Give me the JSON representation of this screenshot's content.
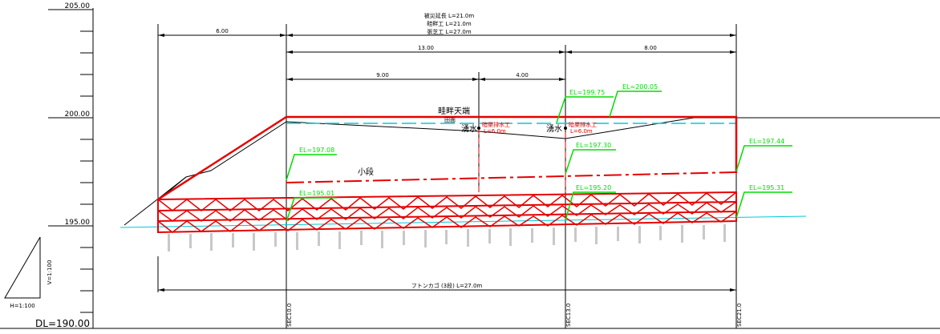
{
  "drawing": {
    "colors": {
      "ink": "#000000",
      "structure": "#e60000",
      "elevation_leader": "#00dd00",
      "water": "#00c8d8",
      "piles": "#c8c8c8"
    },
    "header": {
      "line1": "被災延長  L=21.0m",
      "line2": "畦畔工  L=21.0m",
      "line3": "張芝工  L=27.0m"
    },
    "elevation_axis": {
      "top": "205.00",
      "mid": "200.00",
      "low": "195.00",
      "datum": "DL=190.00"
    },
    "scale": {
      "vertical": "V=1:100",
      "horizontal": "H=1:100"
    },
    "dimensions": {
      "d_6": "6.00",
      "d_13": "13.00",
      "d_8": "8.00",
      "d_9": "9.00",
      "d_4": "4.00"
    },
    "labels": {
      "levee_top": "畦畔天端",
      "rice_field": "田面",
      "spring_a": "湧水",
      "spring_b": "湧水",
      "drain_a": "暗渠排水工",
      "drain_a_len": "L=6.0m",
      "drain_b": "暗渠排水工",
      "drain_b_len": "L=6.0m",
      "berm": "小段",
      "gabion": "フトンカゴ (3段)  L=27.0m"
    },
    "elevations": {
      "el_199_75": "EL=199.75",
      "el_200_05": "EL=200.05",
      "el_197_08": "EL=197.08",
      "el_197_30": "EL=197.30",
      "el_197_44": "EL=197.44",
      "el_195_01": "EL=195.01",
      "el_195_20": "EL=195.20",
      "el_195_31": "EL=195.31"
    },
    "stations": {
      "s0": "SEC10.0",
      "s13": "SEC13.0",
      "s21": "SEC21.0"
    }
  }
}
